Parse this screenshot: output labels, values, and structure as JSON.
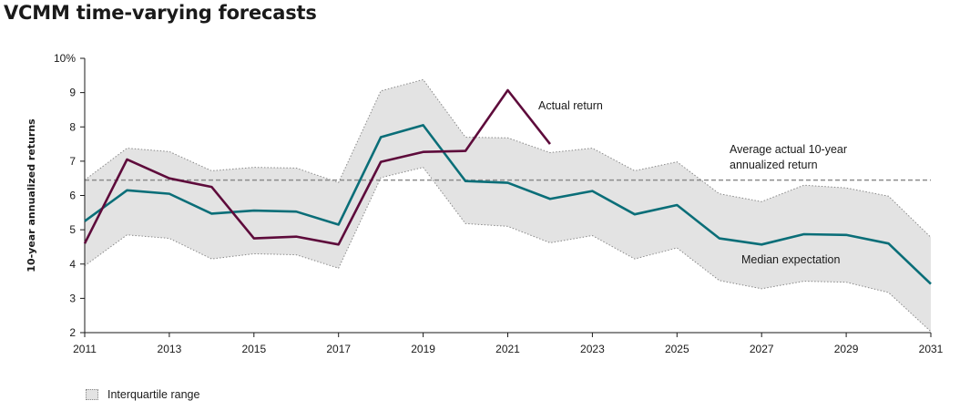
{
  "title": "VCMM time-varying forecasts",
  "chart_data": {
    "type": "line",
    "ylabel": "10-year annualized returns",
    "ylim": [
      2,
      10
    ],
    "xlim": [
      2011,
      2031
    ],
    "y_ticks": [
      2,
      3,
      4,
      5,
      6,
      7,
      8,
      9,
      10
    ],
    "y_tick_labels": [
      "2",
      "3",
      "4",
      "5",
      "6",
      "7",
      "8",
      "9",
      "10%"
    ],
    "x_ticks": [
      2011,
      2013,
      2015,
      2017,
      2019,
      2021,
      2023,
      2025,
      2027,
      2029,
      2031
    ],
    "x_tick_labels": [
      "2011",
      "2013",
      "2015",
      "2017",
      "2019",
      "2021",
      "2023",
      "2025",
      "2027",
      "2029",
      "2031"
    ],
    "grid": false,
    "colors": {
      "actual": "#5e0b3b",
      "median": "#0a6e78",
      "band": "#e3e3e3",
      "band_edge": "#8a8a8a",
      "reference": "#8c8c8c"
    },
    "series": [
      {
        "name": "Actual return",
        "x": [
          2011,
          2012,
          2013,
          2014,
          2015,
          2016,
          2017,
          2018,
          2019,
          2020,
          2021,
          2022
        ],
        "values": [
          4.6,
          7.05,
          6.5,
          6.25,
          4.75,
          4.8,
          4.57,
          6.98,
          7.27,
          7.3,
          9.07,
          7.5
        ]
      },
      {
        "name": "Median expectation",
        "x": [
          2011,
          2012,
          2013,
          2014,
          2015,
          2016,
          2017,
          2018,
          2019,
          2020,
          2021,
          2022,
          2023,
          2024,
          2025,
          2026,
          2027,
          2028,
          2029,
          2030,
          2031
        ],
        "values": [
          5.25,
          6.15,
          6.05,
          5.47,
          5.56,
          5.53,
          5.15,
          7.7,
          8.05,
          6.42,
          6.37,
          5.9,
          6.13,
          5.45,
          5.72,
          4.75,
          4.57,
          4.87,
          4.85,
          4.6,
          3.42
        ]
      }
    ],
    "interquartile_range": {
      "name": "Interquartile range",
      "x": [
        2011,
        2012,
        2013,
        2014,
        2015,
        2016,
        2017,
        2018,
        2019,
        2020,
        2021,
        2022,
        2023,
        2024,
        2025,
        2026,
        2027,
        2028,
        2029,
        2030,
        2031
      ],
      "upper": [
        6.45,
        7.38,
        7.28,
        6.72,
        6.82,
        6.8,
        6.38,
        9.05,
        9.38,
        7.7,
        7.68,
        7.25,
        7.38,
        6.72,
        6.98,
        6.05,
        5.82,
        6.3,
        6.22,
        5.98,
        4.78
      ],
      "lower": [
        3.95,
        4.85,
        4.75,
        4.15,
        4.3,
        4.27,
        3.88,
        6.52,
        6.82,
        5.18,
        5.1,
        4.62,
        4.83,
        4.15,
        4.47,
        3.52,
        3.28,
        3.5,
        3.47,
        3.17,
        2.03
      ]
    },
    "reference_line": {
      "label": "Average actual 10-year annualized return",
      "label_lines": [
        "Average actual 10-year",
        "annualized return"
      ],
      "value": 6.45
    },
    "annotations": {
      "actual": "Actual return",
      "median": "Median expectation"
    },
    "legend": {
      "position": "bottom-left",
      "entries": [
        "Interquartile range"
      ]
    }
  }
}
